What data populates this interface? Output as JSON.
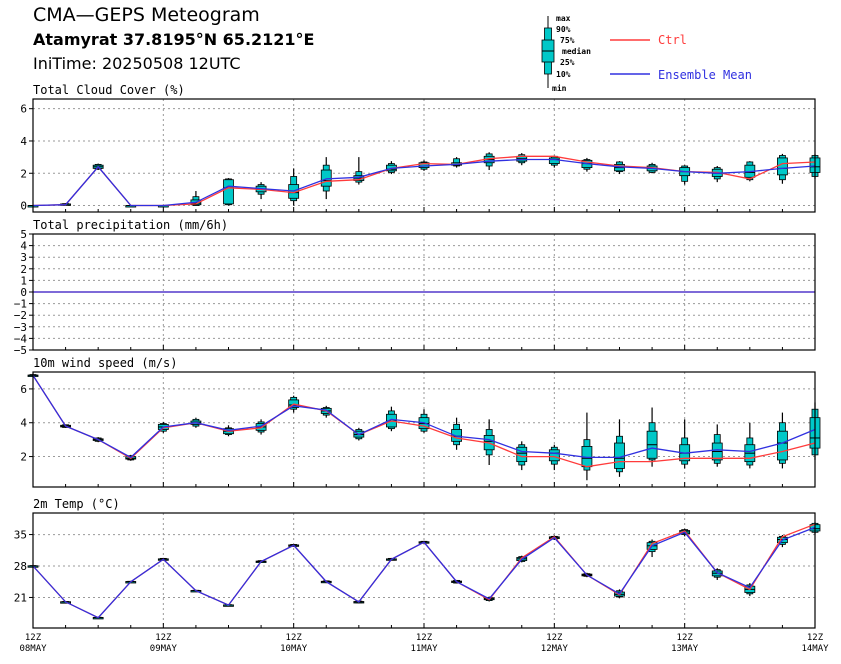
{
  "header": {
    "title": "CMA—GEPS Meteogram",
    "location": "Atamyrat 37.8195°N 65.2121°E",
    "init_time": "IniTime: 20250508 12UTC"
  },
  "legend": {
    "box_labels": [
      "max",
      "90%",
      "75%",
      "median",
      "25%",
      "10%",
      "min"
    ],
    "ctrl_label": "Ctrl",
    "mean_label": "Ensemble Mean"
  },
  "colors": {
    "ctrl": "#ff3b3b",
    "mean": "#3030e0",
    "box": "#00c8c8",
    "grid": "#9a9a9a"
  },
  "x_axis": {
    "ticks": [
      {
        "label1": "12Z",
        "label2": "08MAY"
      },
      {
        "label1": "12Z",
        "label2": "09MAY"
      },
      {
        "label1": "12Z",
        "label2": "10MAY"
      },
      {
        "label1": "12Z",
        "label2": "11MAY"
      },
      {
        "label1": "12Z",
        "label2": "12MAY"
      },
      {
        "label1": "12Z",
        "label2": "13MAY"
      },
      {
        "label1": "12Z",
        "label2": "14MAY"
      }
    ]
  },
  "chart_data": [
    {
      "type": "box-line",
      "title": "Total Cloud Cover (%)",
      "ylim": [
        -0.4,
        6.6
      ],
      "yticks": [
        "0",
        "2",
        "4",
        "6"
      ],
      "ytick_values": [
        0,
        2,
        4,
        6
      ],
      "x_steps_6h": [
        0,
        1,
        2,
        3,
        4,
        5,
        6,
        7,
        8,
        9,
        10,
        11,
        12,
        13,
        14,
        15,
        16,
        17,
        18,
        19,
        20,
        21,
        22,
        23,
        24
      ],
      "ctrl": [
        0,
        0.05,
        2.4,
        0,
        0,
        0.1,
        1.1,
        1.0,
        0.8,
        1.5,
        1.6,
        2.3,
        2.6,
        2.55,
        2.9,
        3.05,
        3.05,
        2.7,
        2.45,
        2.35,
        2.1,
        2.05,
        1.65,
        2.6,
        2.7
      ],
      "mean": [
        0,
        0.05,
        2.4,
        0,
        0,
        0.2,
        1.2,
        1.05,
        0.9,
        1.65,
        1.75,
        2.3,
        2.45,
        2.55,
        2.75,
        2.85,
        2.85,
        2.6,
        2.4,
        2.3,
        2.1,
        2.0,
        2.1,
        2.3,
        2.45
      ],
      "box": [
        [
          0,
          0,
          0,
          0,
          0,
          0,
          0
        ],
        [
          0,
          0.03,
          0.05,
          0.08,
          0.1,
          0.12,
          0.15
        ],
        [
          2.2,
          2.25,
          2.3,
          2.4,
          2.5,
          2.55,
          2.6
        ],
        [
          0,
          0,
          0,
          0,
          0,
          0,
          0
        ],
        [
          0,
          0,
          0,
          0,
          0,
          0,
          0
        ],
        [
          0,
          0,
          0.05,
          0.15,
          0.35,
          0.55,
          0.9
        ],
        [
          0,
          0.05,
          0.1,
          1.1,
          1.6,
          1.65,
          1.7
        ],
        [
          0.4,
          0.7,
          0.85,
          1.0,
          1.2,
          1.3,
          1.45
        ],
        [
          0,
          0.3,
          0.45,
          0.8,
          1.3,
          1.8,
          2.3
        ],
        [
          0.4,
          0.9,
          1.2,
          1.55,
          2.2,
          2.5,
          3.0
        ],
        [
          1.3,
          1.45,
          1.55,
          1.7,
          1.85,
          2.1,
          3.0
        ],
        [
          1.95,
          2.05,
          2.15,
          2.25,
          2.5,
          2.6,
          2.75
        ],
        [
          2.15,
          2.25,
          2.35,
          2.45,
          2.65,
          2.7,
          2.8
        ],
        [
          2.35,
          2.45,
          2.5,
          2.55,
          2.65,
          2.9,
          3.0
        ],
        [
          2.2,
          2.45,
          2.65,
          2.85,
          3.05,
          3.2,
          3.3
        ],
        [
          2.5,
          2.65,
          2.75,
          2.9,
          3.05,
          3.15,
          3.25
        ],
        [
          2.35,
          2.5,
          2.6,
          2.85,
          2.95,
          3.05,
          3.1
        ],
        [
          2.1,
          2.25,
          2.35,
          2.6,
          2.8,
          2.85,
          2.95
        ],
        [
          1.95,
          2.1,
          2.15,
          2.35,
          2.55,
          2.7,
          2.75
        ],
        [
          2.0,
          2.05,
          2.15,
          2.3,
          2.45,
          2.55,
          2.65
        ],
        [
          1.3,
          1.5,
          1.85,
          2.1,
          2.35,
          2.45,
          2.5
        ],
        [
          1.45,
          1.65,
          1.8,
          2.0,
          2.25,
          2.35,
          2.45
        ],
        [
          1.5,
          1.6,
          1.75,
          2.05,
          2.5,
          2.7,
          2.75
        ],
        [
          1.35,
          1.6,
          1.9,
          2.3,
          2.95,
          3.1,
          3.2
        ],
        [
          1.65,
          1.8,
          2.05,
          2.4,
          2.95,
          3.1,
          3.2
        ]
      ]
    },
    {
      "type": "box-line",
      "title": "Total precipitation (mm/6h)",
      "ylim": [
        -5,
        5
      ],
      "yticks": [
        "5",
        "4",
        "3",
        "2",
        "1",
        "0",
        "−1",
        "−2",
        "−3",
        "−4",
        "−5"
      ],
      "ytick_values": [
        5,
        4,
        3,
        2,
        1,
        0,
        -1,
        -2,
        -3,
        -4,
        -5
      ],
      "x_steps_6h": [
        0,
        1,
        2,
        3,
        4,
        5,
        6,
        7,
        8,
        9,
        10,
        11,
        12,
        13,
        14,
        15,
        16,
        17,
        18,
        19,
        20,
        21,
        22,
        23,
        24
      ],
      "ctrl": [
        0,
        0,
        0,
        0,
        0,
        0,
        0,
        0,
        0,
        0,
        0,
        0,
        0,
        0,
        0,
        0,
        0,
        0,
        0,
        0,
        0,
        0,
        0,
        0,
        0
      ],
      "mean": [
        0,
        0,
        0,
        0,
        0,
        0,
        0,
        0,
        0,
        0,
        0,
        0,
        0,
        0,
        0,
        0,
        0,
        0,
        0,
        0,
        0,
        0,
        0,
        0,
        0
      ],
      "box": []
    },
    {
      "type": "box-line",
      "title": "10m wind speed (m/s)",
      "ylim": [
        0.2,
        7.0
      ],
      "yticks": [
        "2",
        "4",
        "6"
      ],
      "ytick_values": [
        2,
        4,
        6
      ],
      "x_steps_6h": [
        0,
        1,
        2,
        3,
        4,
        5,
        6,
        7,
        8,
        9,
        10,
        11,
        12,
        13,
        14,
        15,
        16,
        17,
        18,
        19,
        20,
        21,
        22,
        23,
        24
      ],
      "ctrl": [
        6.8,
        3.8,
        3.0,
        1.9,
        3.7,
        4.0,
        3.5,
        3.7,
        5.1,
        4.7,
        3.3,
        4.1,
        3.8,
        3.1,
        2.8,
        2.0,
        2.0,
        1.4,
        1.7,
        1.7,
        1.9,
        1.9,
        1.9,
        2.3,
        2.8
      ],
      "mean": [
        6.8,
        3.8,
        3.0,
        1.95,
        3.75,
        4.0,
        3.55,
        3.8,
        5.0,
        4.75,
        3.3,
        4.2,
        4.0,
        3.2,
        3.0,
        2.3,
        2.2,
        1.95,
        1.95,
        2.5,
        2.2,
        2.4,
        2.3,
        2.8,
        3.6
      ],
      "box": [
        [
          6.7,
          6.75,
          6.78,
          6.8,
          6.82,
          6.85,
          6.9
        ],
        [
          3.7,
          3.72,
          3.75,
          3.8,
          3.85,
          3.88,
          3.9
        ],
        [
          2.85,
          2.9,
          2.95,
          3.0,
          3.05,
          3.1,
          3.15
        ],
        [
          1.75,
          1.8,
          1.85,
          1.9,
          2.0,
          2.05,
          2.1
        ],
        [
          3.4,
          3.5,
          3.6,
          3.75,
          3.9,
          3.95,
          4.05
        ],
        [
          3.7,
          3.8,
          3.9,
          4.0,
          4.1,
          4.2,
          4.3
        ],
        [
          3.2,
          3.3,
          3.35,
          3.5,
          3.65,
          3.7,
          3.85
        ],
        [
          3.3,
          3.45,
          3.55,
          3.75,
          3.95,
          4.05,
          4.2
        ],
        [
          4.6,
          4.8,
          4.9,
          5.05,
          5.35,
          5.5,
          5.6
        ],
        [
          4.3,
          4.45,
          4.55,
          4.7,
          4.85,
          4.9,
          5.0
        ],
        [
          2.95,
          3.05,
          3.15,
          3.3,
          3.5,
          3.6,
          3.7
        ],
        [
          3.5,
          3.65,
          3.75,
          4.1,
          4.5,
          4.7,
          4.95
        ],
        [
          3.4,
          3.5,
          3.65,
          3.95,
          4.3,
          4.5,
          4.8
        ],
        [
          2.4,
          2.7,
          2.9,
          3.2,
          3.6,
          3.9,
          4.3
        ],
        [
          1.5,
          2.1,
          2.4,
          2.9,
          3.25,
          3.6,
          4.2
        ],
        [
          1.2,
          1.5,
          1.7,
          2.2,
          2.55,
          2.7,
          2.9
        ],
        [
          1.2,
          1.55,
          1.75,
          2.2,
          2.4,
          2.55,
          2.7
        ],
        [
          0.6,
          1.2,
          1.4,
          1.9,
          2.6,
          3.0,
          4.6
        ],
        [
          0.8,
          1.1,
          1.3,
          1.9,
          2.8,
          3.2,
          4.2
        ],
        [
          1.4,
          1.8,
          1.9,
          2.7,
          3.5,
          4.0,
          4.9
        ],
        [
          1.3,
          1.55,
          1.75,
          2.2,
          2.7,
          3.1,
          4.2
        ],
        [
          1.4,
          1.6,
          1.8,
          2.3,
          2.8,
          3.3,
          3.9
        ],
        [
          1.3,
          1.5,
          1.7,
          2.2,
          2.7,
          3.1,
          4.0
        ],
        [
          1.3,
          1.6,
          1.8,
          2.8,
          3.5,
          4.0,
          4.6
        ],
        [
          1.8,
          2.1,
          2.5,
          3.1,
          4.3,
          4.8,
          5.2
        ]
      ]
    },
    {
      "type": "box-line",
      "title": "2m Temp (°C)",
      "ylim": [
        14.2,
        39.8
      ],
      "yticks": [
        "21",
        "28",
        "35"
      ],
      "ytick_values": [
        21,
        28,
        35
      ],
      "x_steps_6h": [
        0,
        1,
        2,
        3,
        4,
        5,
        6,
        7,
        8,
        9,
        10,
        11,
        12,
        13,
        14,
        15,
        16,
        17,
        18,
        19,
        20,
        21,
        22,
        23,
        24
      ],
      "ctrl": [
        28.0,
        20.0,
        16.5,
        24.5,
        29.5,
        22.5,
        19.3,
        29.0,
        32.6,
        24.5,
        20.0,
        29.5,
        33.3,
        24.5,
        20.5,
        29.8,
        34.5,
        26.0,
        21.6,
        33.0,
        35.8,
        26.5,
        22.8,
        34.5,
        37.3
      ],
      "mean": [
        28.0,
        20.0,
        16.5,
        24.5,
        29.5,
        22.5,
        19.3,
        29.0,
        32.6,
        24.5,
        20.0,
        29.5,
        33.3,
        24.5,
        20.7,
        29.5,
        34.3,
        26.0,
        21.8,
        32.5,
        35.5,
        26.5,
        23.2,
        33.8,
        36.6
      ],
      "box": [
        [
          27.8,
          27.9,
          27.95,
          28.0,
          28.05,
          28.1,
          28.2
        ],
        [
          19.8,
          19.9,
          19.95,
          20.0,
          20.05,
          20.1,
          20.2
        ],
        [
          16.3,
          16.4,
          16.45,
          16.5,
          16.55,
          16.6,
          16.7
        ],
        [
          24.3,
          24.4,
          24.45,
          24.5,
          24.55,
          24.6,
          24.7
        ],
        [
          29.2,
          29.3,
          29.4,
          29.5,
          29.6,
          29.7,
          29.8
        ],
        [
          22.3,
          22.4,
          22.45,
          22.5,
          22.55,
          22.6,
          22.7
        ],
        [
          19.1,
          19.2,
          19.25,
          19.3,
          19.35,
          19.4,
          19.5
        ],
        [
          28.7,
          28.8,
          28.9,
          29.0,
          29.1,
          29.2,
          29.3
        ],
        [
          32.3,
          32.4,
          32.5,
          32.6,
          32.7,
          32.8,
          32.9
        ],
        [
          24.2,
          24.3,
          24.4,
          24.5,
          24.6,
          24.7,
          24.8
        ],
        [
          19.7,
          19.8,
          19.9,
          20.0,
          20.1,
          20.2,
          20.3
        ],
        [
          29.2,
          29.3,
          29.4,
          29.5,
          29.6,
          29.7,
          29.8
        ],
        [
          33.0,
          33.1,
          33.2,
          33.3,
          33.4,
          33.5,
          33.6
        ],
        [
          24.1,
          24.2,
          24.35,
          24.5,
          24.65,
          24.8,
          24.9
        ],
        [
          20.1,
          20.3,
          20.5,
          20.7,
          20.9,
          21.0,
          21.2
        ],
        [
          28.8,
          29.0,
          29.2,
          29.6,
          29.9,
          30.1,
          30.3
        ],
        [
          33.8,
          34.0,
          34.1,
          34.3,
          34.5,
          34.6,
          34.8
        ],
        [
          25.5,
          25.7,
          25.8,
          26.0,
          26.2,
          26.3,
          26.5
        ],
        [
          20.8,
          21.1,
          21.3,
          21.7,
          22.2,
          22.5,
          22.8
        ],
        [
          30.0,
          31.2,
          31.7,
          32.5,
          33.2,
          33.5,
          33.9
        ],
        [
          34.6,
          35.0,
          35.2,
          35.6,
          35.9,
          36.1,
          36.3
        ],
        [
          24.9,
          25.5,
          25.8,
          26.4,
          26.9,
          27.2,
          27.5
        ],
        [
          21.3,
          21.8,
          22.1,
          22.8,
          23.5,
          23.8,
          24.2
        ],
        [
          32.2,
          32.8,
          33.2,
          33.9,
          34.4,
          34.6,
          34.9
        ],
        [
          35.0,
          35.5,
          35.8,
          36.3,
          37.2,
          37.5,
          37.8
        ]
      ]
    }
  ]
}
